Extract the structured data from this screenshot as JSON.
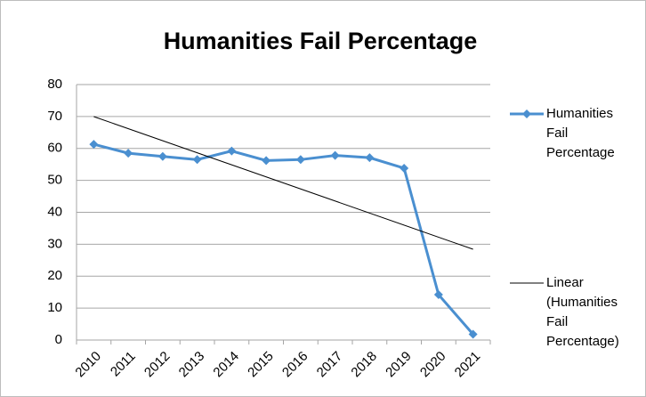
{
  "chart_data": {
    "type": "line",
    "title": "Humanities Fail Percentage",
    "categories": [
      "2010",
      "2011",
      "2012",
      "2013",
      "2014",
      "2015",
      "2016",
      "2017",
      "2018",
      "2019",
      "2020",
      "2021"
    ],
    "series": [
      {
        "name": "Humanities Fail Percentage",
        "color": "#4a8fd0",
        "values": [
          61.3,
          58.5,
          57.5,
          56.5,
          59.2,
          56.2,
          56.5,
          57.8,
          57.1,
          53.8,
          14.2,
          1.8
        ]
      }
    ],
    "trendline": {
      "type": "linear",
      "name": "Linear (Humanities Fail Percentage)",
      "color": "#000000"
    },
    "ylim": [
      0,
      80
    ],
    "yticks": [
      0,
      10,
      20,
      30,
      40,
      50,
      60,
      70,
      80
    ],
    "grid": true,
    "legend": "right"
  }
}
